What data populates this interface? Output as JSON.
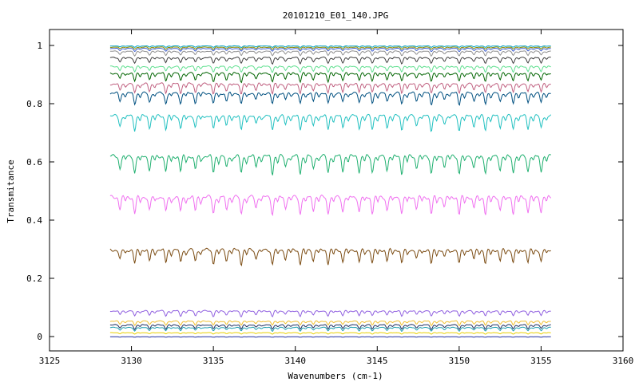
{
  "chart_data": {
    "type": "line",
    "title": "20101210_E01_140.JPG",
    "xlabel": "Wavenumbers (cm-1)",
    "ylabel": "Transmitance",
    "xlim": [
      3125,
      3160
    ],
    "ylim": [
      -0.05,
      1.05
    ],
    "x_ticks": [
      "3125",
      "3130",
      "3135",
      "3140",
      "3145",
      "3150",
      "3155",
      "3160"
    ],
    "y_ticks": [
      "0",
      "0.2",
      "0.4",
      "0.6",
      "0.8",
      "1"
    ],
    "grid": false,
    "legend": "none",
    "x_range": [
      3128.7,
      3155.6
    ],
    "line_positions": [
      3129.3,
      3130.2,
      3131.1,
      3132.1,
      3133.0,
      3133.9,
      3135.0,
      3135.8,
      3136.7,
      3137.6,
      3138.6,
      3139.4,
      3140.3,
      3141.1,
      3142.0,
      3142.9,
      3143.9,
      3144.7,
      3145.6,
      3146.5,
      3147.4,
      3148.3,
      3149.1,
      3150.0,
      3150.9,
      3151.6,
      3152.5,
      3153.3,
      3154.2,
      3155.0
    ],
    "series": [
      {
        "baseline": 1.0,
        "depth": 0.005,
        "color": "#00a0c0"
      },
      {
        "baseline": 0.997,
        "depth": 0.008,
        "color": "#888800"
      },
      {
        "baseline": 0.993,
        "depth": 0.01,
        "color": "#4060d0"
      },
      {
        "baseline": 0.985,
        "depth": 0.015,
        "color": "#909090"
      },
      {
        "baseline": 0.965,
        "depth": 0.02,
        "color": "#404040"
      },
      {
        "baseline": 0.935,
        "depth": 0.02,
        "color": "#60e090"
      },
      {
        "baseline": 0.915,
        "depth": 0.03,
        "color": "#006400"
      },
      {
        "baseline": 0.88,
        "depth": 0.035,
        "color": "#c06080"
      },
      {
        "baseline": 0.85,
        "depth": 0.04,
        "color": "#005080"
      },
      {
        "baseline": 0.775,
        "depth": 0.05,
        "color": "#20c0c0"
      },
      {
        "baseline": 0.64,
        "depth": 0.06,
        "color": "#20b070"
      },
      {
        "baseline": 0.5,
        "depth": 0.06,
        "color": "#f070f0"
      },
      {
        "baseline": 0.315,
        "depth": 0.05,
        "color": "#7a4a10"
      },
      {
        "baseline": 0.095,
        "depth": 0.02,
        "color": "#9060e0"
      },
      {
        "baseline": 0.058,
        "depth": 0.015,
        "color": "#f0c030"
      },
      {
        "baseline": 0.045,
        "depth": 0.015,
        "color": "#203060"
      },
      {
        "baseline": 0.035,
        "depth": 0.012,
        "color": "#20a0b0"
      },
      {
        "baseline": 0.015,
        "depth": 0.005,
        "color": "#e8d000"
      },
      {
        "baseline": 0.0,
        "depth": 0.002,
        "color": "#2030a0"
      }
    ]
  }
}
